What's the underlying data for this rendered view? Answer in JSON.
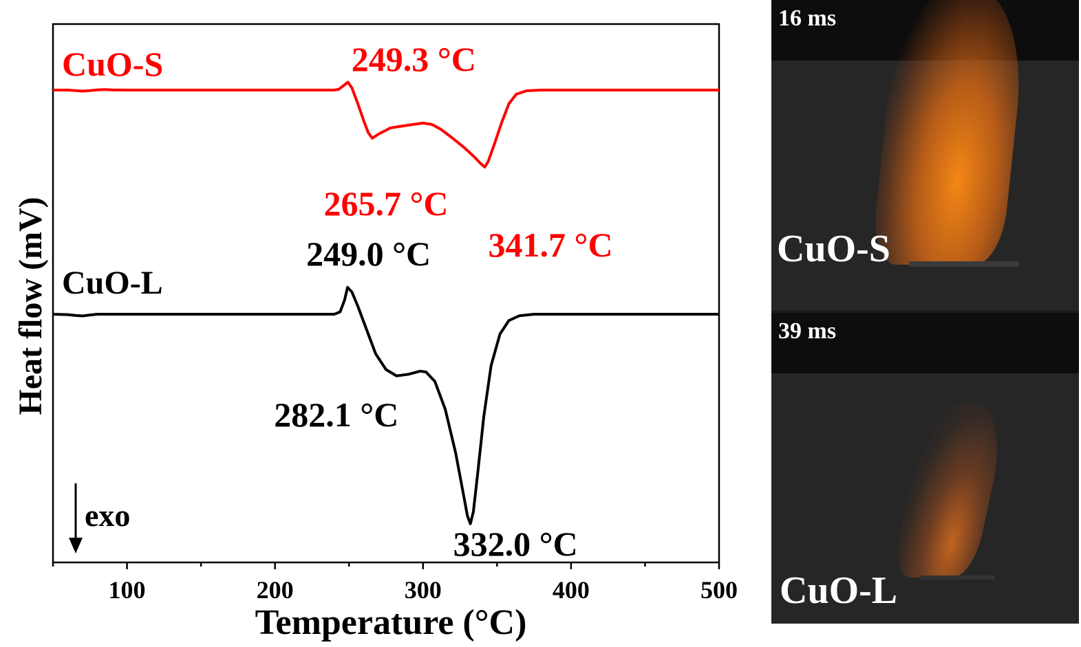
{
  "chart_data": {
    "type": "line",
    "xlabel": "Temperature (°C)",
    "ylabel": "Heat flow (mV)",
    "xlim": [
      50,
      500
    ],
    "xticks": [
      100,
      200,
      300,
      400,
      500
    ],
    "yticks": "none",
    "grid": false,
    "legend": "none",
    "direction_note": "exo",
    "series": [
      {
        "name": "CuO-S",
        "color": "#ff0000",
        "points": [
          [
            50,
            0
          ],
          [
            60,
            0
          ],
          [
            65,
            -0.8
          ],
          [
            70,
            -1.5
          ],
          [
            75,
            -0.8
          ],
          [
            80,
            0.3
          ],
          [
            85,
            0.8
          ],
          [
            90,
            0.3
          ],
          [
            100,
            0
          ],
          [
            240,
            0
          ],
          [
            243,
            1
          ],
          [
            246,
            6
          ],
          [
            249.3,
            11.5
          ],
          [
            252,
            3
          ],
          [
            256,
            -20
          ],
          [
            260,
            -45
          ],
          [
            263,
            -62
          ],
          [
            265.7,
            -70
          ],
          [
            270,
            -64
          ],
          [
            278,
            -55
          ],
          [
            290,
            -51
          ],
          [
            300,
            -48
          ],
          [
            306,
            -50
          ],
          [
            312,
            -57
          ],
          [
            320,
            -70
          ],
          [
            328,
            -84
          ],
          [
            335,
            -98
          ],
          [
            339,
            -107
          ],
          [
            341.7,
            -112
          ],
          [
            344,
            -104
          ],
          [
            348,
            -80
          ],
          [
            353,
            -48
          ],
          [
            358,
            -20
          ],
          [
            363,
            -6
          ],
          [
            370,
            -1
          ],
          [
            380,
            0
          ],
          [
            400,
            0
          ],
          [
            500,
            0
          ]
        ],
        "annotations": [
          {
            "x": 249.3,
            "text": "249.3 °C"
          },
          {
            "x": 265.7,
            "text": "265.7 °C"
          },
          {
            "x": 341.7,
            "text": "341.7 °C"
          }
        ]
      },
      {
        "name": "CuO-L",
        "color": "#000000",
        "points": [
          [
            50,
            0
          ],
          [
            60,
            -0.5
          ],
          [
            65,
            -1.5
          ],
          [
            70,
            -2.2
          ],
          [
            75,
            -1
          ],
          [
            80,
            0
          ],
          [
            100,
            0
          ],
          [
            240,
            0
          ],
          [
            244,
            3
          ],
          [
            247,
            18
          ],
          [
            249.0,
            34
          ],
          [
            252,
            28
          ],
          [
            256,
            10
          ],
          [
            262,
            -20
          ],
          [
            268,
            -50
          ],
          [
            275,
            -70
          ],
          [
            282.1,
            -78
          ],
          [
            290,
            -76
          ],
          [
            298,
            -72
          ],
          [
            302,
            -73
          ],
          [
            308,
            -85
          ],
          [
            315,
            -120
          ],
          [
            322,
            -175
          ],
          [
            327,
            -225
          ],
          [
            330,
            -255
          ],
          [
            332.0,
            -265
          ],
          [
            334,
            -250
          ],
          [
            337,
            -200
          ],
          [
            341,
            -130
          ],
          [
            346,
            -65
          ],
          [
            352,
            -25
          ],
          [
            358,
            -8
          ],
          [
            365,
            -2
          ],
          [
            375,
            0
          ],
          [
            400,
            0
          ],
          [
            500,
            0
          ]
        ],
        "annotations": [
          {
            "x": 249.0,
            "text": "249.0 °C"
          },
          {
            "x": 282.1,
            "text": "282.1 °C"
          },
          {
            "x": 332.0,
            "text": "332.0 °C"
          }
        ]
      }
    ]
  },
  "photos": {
    "frames": [
      {
        "time_label": "16 ms",
        "sample_label": "CuO-S"
      },
      {
        "time_label": "39 ms",
        "sample_label": "CuO-L"
      }
    ]
  }
}
